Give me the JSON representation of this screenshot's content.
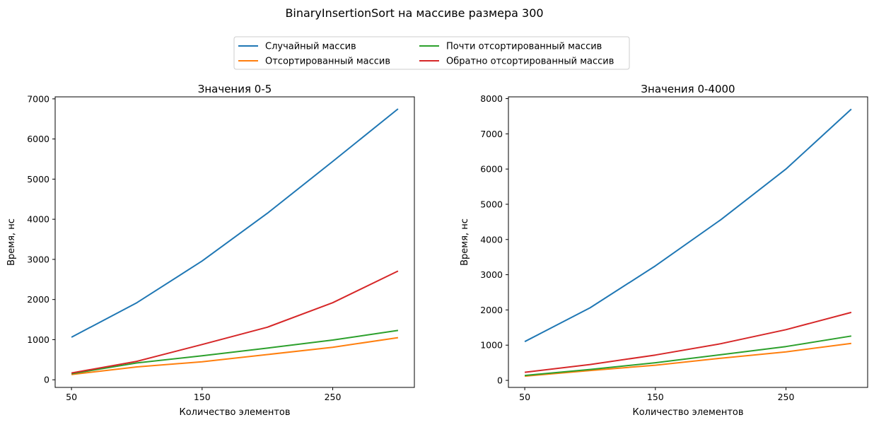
{
  "figure": {
    "suptitle": "BinaryInsertionSort на массиве размера 300"
  },
  "legend": {
    "placement": "top-center",
    "columns": 2,
    "entries": [
      {
        "label": "Случайный массив",
        "color": "#1f77b4"
      },
      {
        "label": "Отсортированный массив",
        "color": "#ff7f0e"
      },
      {
        "label": "Почти отсортированный массив",
        "color": "#2ca02c"
      },
      {
        "label": "Обратно отсортированный массив",
        "color": "#d62728"
      }
    ]
  },
  "chart_data": [
    {
      "type": "line",
      "title": "Значения 0-5",
      "xlabel": "Количество элементов",
      "ylabel": "Время, нс",
      "x": [
        50,
        100,
        150,
        200,
        250,
        300
      ],
      "xticks": [
        50,
        150,
        250
      ],
      "xlim": [
        37.5,
        312.5
      ],
      "yticks": [
        0,
        1000,
        2000,
        3000,
        4000,
        5000,
        6000,
        7000
      ],
      "ylim": [
        -190,
        7050
      ],
      "grid": false,
      "series": [
        {
          "name": "Случайный массив",
          "color": "#1f77b4",
          "values": [
            1060,
            1920,
            2960,
            4150,
            5440,
            6750
          ]
        },
        {
          "name": "Отсортированный массив",
          "color": "#ff7f0e",
          "values": [
            130,
            320,
            450,
            630,
            810,
            1050
          ]
        },
        {
          "name": "Почти отсортированный массив",
          "color": "#2ca02c",
          "values": [
            150,
            420,
            600,
            790,
            990,
            1230
          ]
        },
        {
          "name": "Обратно отсортированный массив",
          "color": "#d62728",
          "values": [
            170,
            460,
            880,
            1310,
            1920,
            2710
          ]
        }
      ]
    },
    {
      "type": "line",
      "title": "Значения 0-4000",
      "xlabel": "Количество элементов",
      "ylabel": "Время, нс",
      "x": [
        50,
        100,
        150,
        200,
        250,
        300
      ],
      "xticks": [
        50,
        150,
        250
      ],
      "xlim": [
        37.5,
        312.5
      ],
      "yticks": [
        0,
        1000,
        2000,
        3000,
        4000,
        5000,
        6000,
        7000,
        8000
      ],
      "ylim": [
        -200,
        8050
      ],
      "grid": false,
      "series": [
        {
          "name": "Случайный массив",
          "color": "#1f77b4",
          "values": [
            1100,
            2060,
            3250,
            4560,
            6000,
            7700
          ]
        },
        {
          "name": "Отсортированный массив",
          "color": "#ff7f0e",
          "values": [
            120,
            280,
            430,
            630,
            810,
            1050
          ]
        },
        {
          "name": "Почти отсортированный массив",
          "color": "#2ca02c",
          "values": [
            140,
            310,
            500,
            730,
            960,
            1260
          ]
        },
        {
          "name": "Обратно отсортированный массив",
          "color": "#d62728",
          "values": [
            230,
            450,
            720,
            1040,
            1440,
            1930
          ]
        }
      ]
    }
  ]
}
